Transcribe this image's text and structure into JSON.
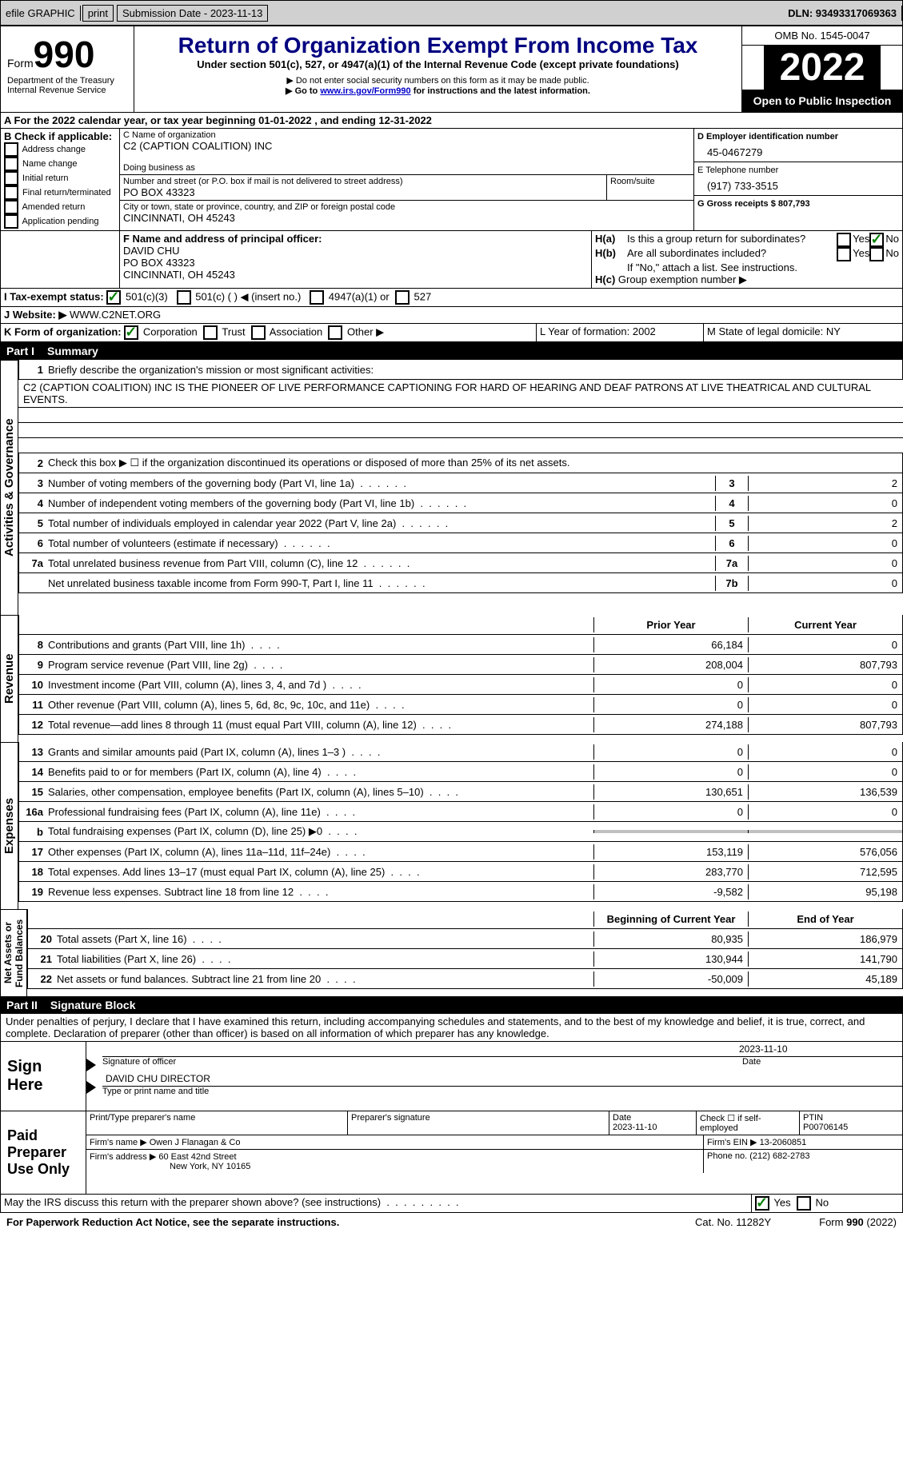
{
  "topbar": {
    "efile": "efile GRAPHIC",
    "print": "print",
    "submission_label": "Submission Date - 2023-11-13",
    "dln_label": "DLN: 93493317069363"
  },
  "header": {
    "form_label": "Form",
    "form_number": "990",
    "dept": "Department of the Treasury",
    "irs": "Internal Revenue Service",
    "title": "Return of Organization Exempt From Income Tax",
    "subtitle": "Under section 501(c), 527, or 4947(a)(1) of the Internal Revenue Code (except private foundations)",
    "note1": "▶ Do not enter social security numbers on this form as it may be made public.",
    "note2_pre": "▶ Go to ",
    "note2_link": "www.irs.gov/Form990",
    "note2_post": " for instructions and the latest information.",
    "omb": "OMB No. 1545-0047",
    "year": "2022",
    "inspect": "Open to Public Inspection"
  },
  "sectionA": {
    "a_line": "A For the 2022 calendar year, or tax year beginning 01-01-2022  , and ending 12-31-2022",
    "b_label": "B Check if applicable:",
    "b_opts": [
      "Address change",
      "Name change",
      "Initial return",
      "Final return/terminated",
      "Amended return",
      "Application pending"
    ],
    "c_label": "C Name of organization",
    "org_name": "C2 (CAPTION COALITION) INC",
    "dba_label": "Doing business as",
    "addr_label": "Number and street (or P.O. box if mail is not delivered to street address)",
    "room_label": "Room/suite",
    "addr": "PO BOX 43323",
    "city_label": "City or town, state or province, country, and ZIP or foreign postal code",
    "city": "CINCINNATI, OH  45243",
    "d_label": "D Employer identification number",
    "ein": "45-0467279",
    "e_label": "E Telephone number",
    "phone": "(917) 733-3515",
    "g_label": "G Gross receipts $ 807,793",
    "f_label": "F Name and address of principal officer:",
    "officer_name": "DAVID CHU",
    "officer_addr1": "PO BOX 43323",
    "officer_addr2": "CINCINNATI, OH  45243",
    "h_a": "Is this a group return for subordinates?",
    "h_b": "Are all subordinates included?",
    "h_note": "If \"No,\" attach a list. See instructions.",
    "h_c": "Group exemption number ▶",
    "i_label": "I  Tax-exempt status:",
    "i_501c3": "501(c)(3)",
    "i_501c": "501(c) (  ) ◀ (insert no.)",
    "i_4947": "4947(a)(1) or",
    "i_527": "527",
    "j_label": "J  Website: ▶",
    "website": "WWW.C2NET.ORG",
    "k_label": "K Form of organization:",
    "k_corp": "Corporation",
    "k_trust": "Trust",
    "k_assoc": "Association",
    "k_other": "Other ▶",
    "l_label": "L Year of formation: 2002",
    "m_label": "M State of legal domicile: NY",
    "yes": "Yes",
    "no": "No"
  },
  "part1": {
    "header": "Summary",
    "partno": "Part I",
    "vert_labels": [
      "Activities & Governance",
      "Revenue",
      "Expenses",
      "Net Assets or Fund Balances"
    ],
    "line1_label": "Briefly describe the organization's mission or most significant activities:",
    "mission": "C2 (CAPTION COALITION) INC IS THE PIONEER OF LIVE PERFORMANCE CAPTIONING FOR HARD OF HEARING AND DEAF PATRONS AT LIVE THEATRICAL AND CULTURAL EVENTS.",
    "line2_label": "Check this box ▶ ☐ if the organization discontinued its operations or disposed of more than 25% of its net assets.",
    "lines_gov": [
      {
        "n": "3",
        "d": "Number of voting members of the governing body (Part VI, line 1a)",
        "box": "3",
        "v": "2"
      },
      {
        "n": "4",
        "d": "Number of independent voting members of the governing body (Part VI, line 1b)",
        "box": "4",
        "v": "0"
      },
      {
        "n": "5",
        "d": "Total number of individuals employed in calendar year 2022 (Part V, line 2a)",
        "box": "5",
        "v": "2"
      },
      {
        "n": "6",
        "d": "Total number of volunteers (estimate if necessary)",
        "box": "6",
        "v": "0"
      },
      {
        "n": "7a",
        "d": "Total unrelated business revenue from Part VIII, column (C), line 12",
        "box": "7a",
        "v": "0"
      },
      {
        "n": "",
        "d": "Net unrelated business taxable income from Form 990-T, Part I, line 11",
        "box": "7b",
        "v": "0"
      }
    ],
    "col_prior": "Prior Year",
    "col_current": "Current Year",
    "col_beg": "Beginning of Current Year",
    "col_end": "End of Year",
    "lines_rev": [
      {
        "n": "8",
        "d": "Contributions and grants (Part VIII, line 1h)",
        "p": "66,184",
        "c": "0"
      },
      {
        "n": "9",
        "d": "Program service revenue (Part VIII, line 2g)",
        "p": "208,004",
        "c": "807,793"
      },
      {
        "n": "10",
        "d": "Investment income (Part VIII, column (A), lines 3, 4, and 7d )",
        "p": "0",
        "c": "0"
      },
      {
        "n": "11",
        "d": "Other revenue (Part VIII, column (A), lines 5, 6d, 8c, 9c, 10c, and 11e)",
        "p": "0",
        "c": "0"
      },
      {
        "n": "12",
        "d": "Total revenue—add lines 8 through 11 (must equal Part VIII, column (A), line 12)",
        "p": "274,188",
        "c": "807,793"
      }
    ],
    "lines_exp": [
      {
        "n": "13",
        "d": "Grants and similar amounts paid (Part IX, column (A), lines 1–3 )",
        "p": "0",
        "c": "0"
      },
      {
        "n": "14",
        "d": "Benefits paid to or for members (Part IX, column (A), line 4)",
        "p": "0",
        "c": "0"
      },
      {
        "n": "15",
        "d": "Salaries, other compensation, employee benefits (Part IX, column (A), lines 5–10)",
        "p": "130,651",
        "c": "136,539"
      },
      {
        "n": "16a",
        "d": "Professional fundraising fees (Part IX, column (A), line 11e)",
        "p": "0",
        "c": "0"
      },
      {
        "n": "b",
        "d": "Total fundraising expenses (Part IX, column (D), line 25) ▶0",
        "p": "",
        "c": "",
        "grey": true
      },
      {
        "n": "17",
        "d": "Other expenses (Part IX, column (A), lines 11a–11d, 11f–24e)",
        "p": "153,119",
        "c": "576,056"
      },
      {
        "n": "18",
        "d": "Total expenses. Add lines 13–17 (must equal Part IX, column (A), line 25)",
        "p": "283,770",
        "c": "712,595"
      },
      {
        "n": "19",
        "d": "Revenue less expenses. Subtract line 18 from line 12",
        "p": "-9,582",
        "c": "95,198"
      }
    ],
    "lines_net": [
      {
        "n": "20",
        "d": "Total assets (Part X, line 16)",
        "p": "80,935",
        "c": "186,979"
      },
      {
        "n": "21",
        "d": "Total liabilities (Part X, line 26)",
        "p": "130,944",
        "c": "141,790"
      },
      {
        "n": "22",
        "d": "Net assets or fund balances. Subtract line 21 from line 20",
        "p": "-50,009",
        "c": "45,189"
      }
    ]
  },
  "part2": {
    "partno": "Part II",
    "header": "Signature Block",
    "decl": "Under penalties of perjury, I declare that I have examined this return, including accompanying schedules and statements, and to the best of my knowledge and belief, it is true, correct, and complete. Declaration of preparer (other than officer) is based on all information of which preparer has any knowledge.",
    "sign_here": "Sign Here",
    "sig_officer": "Signature of officer",
    "sig_date": "2023-11-10",
    "sig_name": "DAVID CHU  DIRECTOR",
    "sig_name_label": "Type or print name and title",
    "paid_label": "Paid Preparer Use Only",
    "prep_name_label": "Print/Type preparer's name",
    "prep_sig_label": "Preparer's signature",
    "prep_date_label": "Date",
    "prep_date": "2023-11-10",
    "prep_check_label": "Check ☐ if self-employed",
    "ptin_label": "PTIN",
    "ptin": "P00706145",
    "firm_name_label": "Firm's name   ▶",
    "firm_name": "Owen J Flanagan & Co",
    "firm_ein_label": "Firm's EIN ▶",
    "firm_ein": "13-2060851",
    "firm_addr_label": "Firm's address ▶",
    "firm_addr1": "60 East 42nd Street",
    "firm_addr2": "New York, NY  10165",
    "firm_phone_label": "Phone no.",
    "firm_phone": "(212) 682-2783",
    "discuss": "May the IRS discuss this return with the preparer shown above? (see instructions)"
  },
  "footer": {
    "paperwork": "For Paperwork Reduction Act Notice, see the separate instructions.",
    "catno": "Cat. No. 11282Y",
    "formref": "Form 990 (2022)"
  }
}
